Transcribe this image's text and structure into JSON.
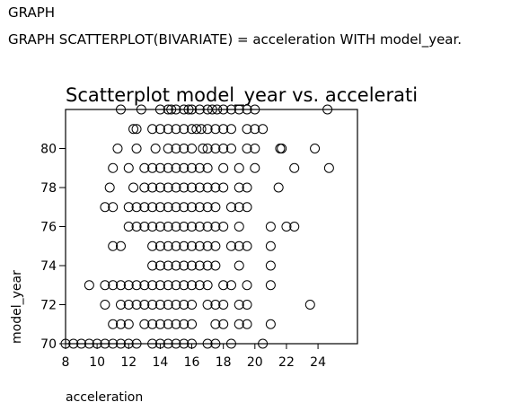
{
  "syntax": {
    "command": "GRAPH",
    "statement": "GRAPH SCATTERPLOT(BIVARIATE) = acceleration WITH model_year."
  },
  "chart_data": {
    "type": "scatter",
    "title": "Scatterplot model_year vs. accelerati",
    "xlabel": "acceleration",
    "ylabel": "model_year",
    "xlim": [
      8,
      26.5
    ],
    "ylim": [
      70,
      82
    ],
    "xticks": [
      8,
      10,
      12,
      14,
      16,
      18,
      20,
      22,
      24
    ],
    "yticks": [
      70,
      72,
      74,
      76,
      78,
      80
    ],
    "grid": false,
    "marker": "open-circle",
    "points": [
      [
        8.0,
        70
      ],
      [
        8.5,
        70
      ],
      [
        9.0,
        70
      ],
      [
        9.5,
        70
      ],
      [
        10.0,
        70
      ],
      [
        10.5,
        70
      ],
      [
        11.0,
        70
      ],
      [
        11.5,
        70
      ],
      [
        12.0,
        70
      ],
      [
        12.5,
        70
      ],
      [
        13.5,
        70
      ],
      [
        14.0,
        70
      ],
      [
        14.5,
        70
      ],
      [
        15.0,
        70
      ],
      [
        15.5,
        70
      ],
      [
        16.0,
        70
      ],
      [
        17.0,
        70
      ],
      [
        17.5,
        70
      ],
      [
        18.5,
        70
      ],
      [
        20.5,
        70
      ],
      [
        11.0,
        71
      ],
      [
        11.5,
        71
      ],
      [
        12.0,
        71
      ],
      [
        13.0,
        71
      ],
      [
        13.5,
        71
      ],
      [
        14.0,
        71
      ],
      [
        14.5,
        71
      ],
      [
        15.0,
        71
      ],
      [
        15.5,
        71
      ],
      [
        16.0,
        71
      ],
      [
        17.5,
        71
      ],
      [
        18.0,
        71
      ],
      [
        19.0,
        71
      ],
      [
        19.5,
        71
      ],
      [
        21.0,
        71
      ],
      [
        10.5,
        72
      ],
      [
        11.5,
        72
      ],
      [
        12.0,
        72
      ],
      [
        12.5,
        72
      ],
      [
        13.0,
        72
      ],
      [
        13.5,
        72
      ],
      [
        14.0,
        72
      ],
      [
        14.5,
        72
      ],
      [
        15.0,
        72
      ],
      [
        15.5,
        72
      ],
      [
        16.0,
        72
      ],
      [
        17.0,
        72
      ],
      [
        17.5,
        72
      ],
      [
        18.0,
        72
      ],
      [
        19.0,
        72
      ],
      [
        19.5,
        72
      ],
      [
        23.5,
        72
      ],
      [
        9.5,
        73
      ],
      [
        10.5,
        73
      ],
      [
        11.0,
        73
      ],
      [
        11.5,
        73
      ],
      [
        12.0,
        73
      ],
      [
        12.5,
        73
      ],
      [
        13.0,
        73
      ],
      [
        13.5,
        73
      ],
      [
        14.0,
        73
      ],
      [
        14.5,
        73
      ],
      [
        15.0,
        73
      ],
      [
        15.5,
        73
      ],
      [
        16.0,
        73
      ],
      [
        16.5,
        73
      ],
      [
        17.0,
        73
      ],
      [
        18.0,
        73
      ],
      [
        18.5,
        73
      ],
      [
        19.5,
        73
      ],
      [
        21.0,
        73
      ],
      [
        13.5,
        74
      ],
      [
        14.0,
        74
      ],
      [
        14.5,
        74
      ],
      [
        15.0,
        74
      ],
      [
        15.5,
        74
      ],
      [
        16.0,
        74
      ],
      [
        16.5,
        74
      ],
      [
        17.0,
        74
      ],
      [
        17.5,
        74
      ],
      [
        19.0,
        74
      ],
      [
        21.0,
        74
      ],
      [
        13.5,
        75
      ],
      [
        14.0,
        75
      ],
      [
        14.5,
        75
      ],
      [
        15.0,
        75
      ],
      [
        15.5,
        75
      ],
      [
        16.0,
        75
      ],
      [
        16.5,
        75
      ],
      [
        17.0,
        75
      ],
      [
        17.5,
        75
      ],
      [
        18.5,
        75
      ],
      [
        19.0,
        75
      ],
      [
        19.5,
        75
      ],
      [
        21.0,
        75
      ],
      [
        11.0,
        75
      ],
      [
        11.5,
        75
      ],
      [
        12.0,
        76
      ],
      [
        12.5,
        76
      ],
      [
        13.0,
        76
      ],
      [
        13.5,
        76
      ],
      [
        14.0,
        76
      ],
      [
        14.5,
        76
      ],
      [
        15.0,
        76
      ],
      [
        15.5,
        76
      ],
      [
        16.0,
        76
      ],
      [
        16.5,
        76
      ],
      [
        17.0,
        76
      ],
      [
        17.5,
        76
      ],
      [
        18.0,
        76
      ],
      [
        19.0,
        76
      ],
      [
        21.0,
        76
      ],
      [
        22.0,
        76
      ],
      [
        22.5,
        76
      ],
      [
        10.5,
        77
      ],
      [
        11.0,
        77
      ],
      [
        12.0,
        77
      ],
      [
        12.5,
        77
      ],
      [
        13.0,
        77
      ],
      [
        13.5,
        77
      ],
      [
        14.0,
        77
      ],
      [
        14.5,
        77
      ],
      [
        15.0,
        77
      ],
      [
        15.5,
        77
      ],
      [
        16.0,
        77
      ],
      [
        16.5,
        77
      ],
      [
        17.0,
        77
      ],
      [
        17.5,
        77
      ],
      [
        18.5,
        77
      ],
      [
        19.0,
        77
      ],
      [
        19.5,
        77
      ],
      [
        10.8,
        78
      ],
      [
        12.3,
        78
      ],
      [
        13.0,
        78
      ],
      [
        13.5,
        78
      ],
      [
        14.0,
        78
      ],
      [
        14.5,
        78
      ],
      [
        15.0,
        78
      ],
      [
        15.5,
        78
      ],
      [
        16.0,
        78
      ],
      [
        16.5,
        78
      ],
      [
        17.0,
        78
      ],
      [
        17.5,
        78
      ],
      [
        18.0,
        78
      ],
      [
        19.0,
        78
      ],
      [
        19.5,
        78
      ],
      [
        21.5,
        78
      ],
      [
        11.0,
        79
      ],
      [
        12.0,
        79
      ],
      [
        13.0,
        79
      ],
      [
        13.5,
        79
      ],
      [
        14.0,
        79
      ],
      [
        14.5,
        79
      ],
      [
        15.0,
        79
      ],
      [
        15.5,
        79
      ],
      [
        16.0,
        79
      ],
      [
        16.5,
        79
      ],
      [
        17.0,
        79
      ],
      [
        18.0,
        79
      ],
      [
        19.0,
        79
      ],
      [
        20.0,
        79
      ],
      [
        22.5,
        79
      ],
      [
        24.7,
        79
      ],
      [
        11.3,
        80
      ],
      [
        12.5,
        80
      ],
      [
        13.7,
        80
      ],
      [
        14.5,
        80
      ],
      [
        15.0,
        80
      ],
      [
        15.5,
        80
      ],
      [
        16.0,
        80
      ],
      [
        16.7,
        80
      ],
      [
        17.0,
        80
      ],
      [
        17.5,
        80
      ],
      [
        18.0,
        80
      ],
      [
        18.5,
        80
      ],
      [
        19.5,
        80
      ],
      [
        20.0,
        80
      ],
      [
        21.6,
        80
      ],
      [
        21.7,
        80
      ],
      [
        23.8,
        80
      ],
      [
        12.3,
        81
      ],
      [
        12.5,
        81
      ],
      [
        13.5,
        81
      ],
      [
        14.0,
        81
      ],
      [
        14.5,
        81
      ],
      [
        15.0,
        81
      ],
      [
        15.5,
        81
      ],
      [
        16.0,
        81
      ],
      [
        16.3,
        81
      ],
      [
        16.6,
        81
      ],
      [
        17.0,
        81
      ],
      [
        17.5,
        81
      ],
      [
        18.0,
        81
      ],
      [
        18.5,
        81
      ],
      [
        19.5,
        81
      ],
      [
        20.0,
        81
      ],
      [
        20.5,
        81
      ],
      [
        11.5,
        82
      ],
      [
        12.8,
        82
      ],
      [
        14.0,
        82
      ],
      [
        14.5,
        82
      ],
      [
        14.7,
        82
      ],
      [
        15.0,
        82
      ],
      [
        15.5,
        82
      ],
      [
        15.8,
        82
      ],
      [
        16.0,
        82
      ],
      [
        16.5,
        82
      ],
      [
        17.0,
        82
      ],
      [
        17.3,
        82
      ],
      [
        17.6,
        82
      ],
      [
        18.0,
        82
      ],
      [
        18.5,
        82
      ],
      [
        19.0,
        82
      ],
      [
        19.5,
        82
      ],
      [
        20.0,
        82
      ],
      [
        24.6,
        82
      ]
    ]
  }
}
